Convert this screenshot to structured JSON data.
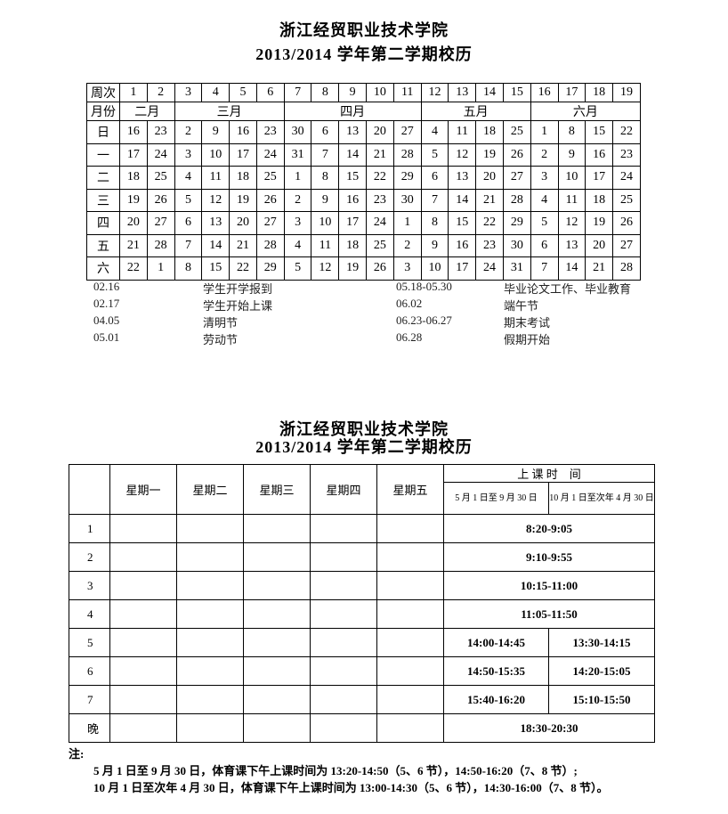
{
  "title1": "浙江经贸职业技术学院",
  "subtitle1": "2013/2014 学年第二学期校历",
  "calendar": {
    "week_label": "周次",
    "weeks": [
      "1",
      "2",
      "3",
      "4",
      "5",
      "6",
      "7",
      "8",
      "9",
      "10",
      "11",
      "12",
      "13",
      "14",
      "15",
      "16",
      "17",
      "18",
      "19"
    ],
    "month_label": "月份",
    "months": [
      {
        "label": "二月",
        "span": 2
      },
      {
        "label": "三月",
        "span": 4
      },
      {
        "label": "四月",
        "span": 5
      },
      {
        "label": "五月",
        "span": 4
      },
      {
        "label": "六月",
        "span": 4
      }
    ],
    "days": [
      {
        "label": "日",
        "dates": [
          "16",
          "23",
          "2",
          "9",
          "16",
          "23",
          "30",
          "6",
          "13",
          "20",
          "27",
          "4",
          "11",
          "18",
          "25",
          "1",
          "8",
          "15",
          "22"
        ]
      },
      {
        "label": "一",
        "dates": [
          "17",
          "24",
          "3",
          "10",
          "17",
          "24",
          "31",
          "7",
          "14",
          "21",
          "28",
          "5",
          "12",
          "19",
          "26",
          "2",
          "9",
          "16",
          "23"
        ]
      },
      {
        "label": "二",
        "dates": [
          "18",
          "25",
          "4",
          "11",
          "18",
          "25",
          "1",
          "8",
          "15",
          "22",
          "29",
          "6",
          "13",
          "20",
          "27",
          "3",
          "10",
          "17",
          "24"
        ]
      },
      {
        "label": "三",
        "dates": [
          "19",
          "26",
          "5",
          "12",
          "19",
          "26",
          "2",
          "9",
          "16",
          "23",
          "30",
          "7",
          "14",
          "21",
          "28",
          "4",
          "11",
          "18",
          "25"
        ]
      },
      {
        "label": "四",
        "dates": [
          "20",
          "27",
          "6",
          "13",
          "20",
          "27",
          "3",
          "10",
          "17",
          "24",
          "1",
          "8",
          "15",
          "22",
          "29",
          "5",
          "12",
          "19",
          "26"
        ]
      },
      {
        "label": "五",
        "dates": [
          "21",
          "28",
          "7",
          "14",
          "21",
          "28",
          "4",
          "11",
          "18",
          "25",
          "2",
          "9",
          "16",
          "23",
          "30",
          "6",
          "13",
          "20",
          "27"
        ]
      },
      {
        "label": "六",
        "dates": [
          "22",
          "1",
          "8",
          "15",
          "22",
          "29",
          "5",
          "12",
          "19",
          "26",
          "3",
          "10",
          "17",
          "24",
          "31",
          "7",
          "14",
          "21",
          "28"
        ]
      }
    ]
  },
  "events_left": [
    {
      "date": "02.16",
      "text": "学生开学报到"
    },
    {
      "date": "02.17",
      "text": "学生开始上课"
    },
    {
      "date": "04.05",
      "text": "清明节"
    },
    {
      "date": "05.01",
      "text": "劳动节"
    }
  ],
  "events_right": [
    {
      "date": "05.18-05.30",
      "text": "毕业论文工作、毕业教育"
    },
    {
      "date": "06.02",
      "text": "端午节"
    },
    {
      "date": "06.23-06.27",
      "text": "期末考试"
    },
    {
      "date": "06.28",
      "text": "假期开始"
    }
  ],
  "title2": "浙江经贸职业技术学院",
  "subtitle2": "2013/2014 学年第二学期校历",
  "schedule": {
    "weekdays": [
      "星期一",
      "星期二",
      "星期三",
      "星期四",
      "星期五"
    ],
    "time_header": "上 课 时　间",
    "period_a": "5 月 1 日至 9 月 30 日",
    "period_b": "10 月 1 日至次年 4 月 30 日",
    "rows": [
      {
        "label": "1",
        "times": [
          "8:20-9:05"
        ]
      },
      {
        "label": "2",
        "times": [
          "9:10-9:55"
        ]
      },
      {
        "label": "3",
        "times": [
          "10:15-11:00"
        ]
      },
      {
        "label": "4",
        "times": [
          "11:05-11:50"
        ]
      },
      {
        "label": "5",
        "times": [
          "14:00-14:45",
          "13:30-14:15"
        ]
      },
      {
        "label": "6",
        "times": [
          "14:50-15:35",
          "14:20-15:05"
        ]
      },
      {
        "label": "7",
        "times": [
          "15:40-16:20",
          "15:10-15:50"
        ]
      },
      {
        "label": "晚",
        "times": [
          "18:30-20:30"
        ]
      }
    ]
  },
  "notes": {
    "label": "注:",
    "lines": [
      "5 月 1 日至 9 月 30 日，体育课下午上课时间为 13:20-14:50（5、6 节），14:50-16:20（7、8 节）;",
      "10 月 1 日至次年 4 月 30 日，体育课下午上课时间为 13:00-14:30（5、6 节），14:30-16:00（7、8 节）。"
    ]
  }
}
